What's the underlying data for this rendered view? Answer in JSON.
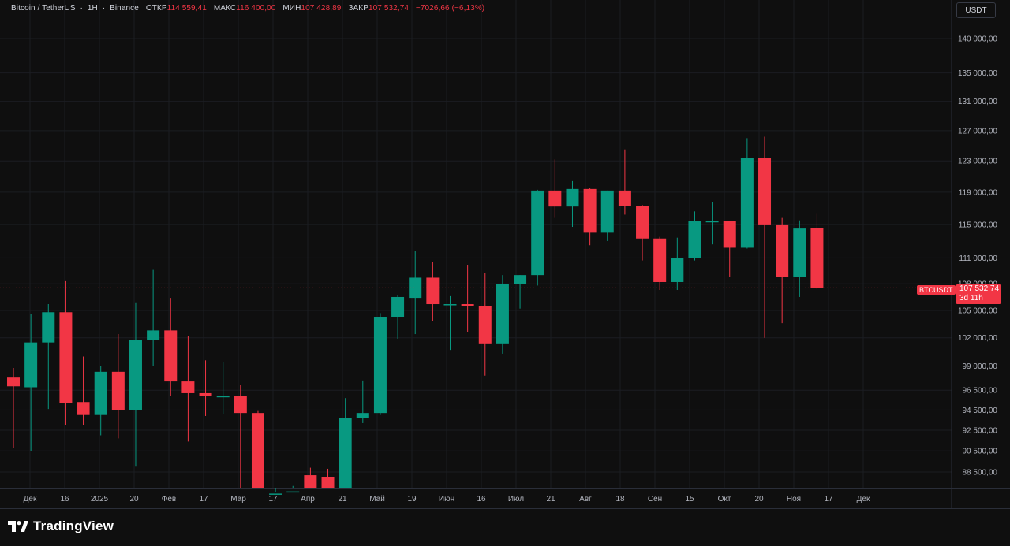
{
  "header": {
    "symbol": "Bitcoin / TetherUS",
    "interval": "1H",
    "exchange": "Binance",
    "open_label": "ОТКР",
    "open_value": "114 559,41",
    "high_label": "МАКС",
    "high_value": "116 400,00",
    "low_label": "МИН",
    "low_value": "107 428,89",
    "close_label": "ЗАКР",
    "close_value": "107 532,74",
    "change_value": "−7026,66 (−6,13%)"
  },
  "currency_button": "USDT",
  "price_tag": {
    "symbol": "BTCUSDT",
    "price": "107 532,74",
    "countdown": "3d 11h"
  },
  "footer": {
    "brand": "TradingView"
  },
  "colors": {
    "up": "#089981",
    "down": "#f23645",
    "background": "#0f0f0f",
    "grid": "#1b1d22",
    "text": "#d1d4dc"
  },
  "chart_data": {
    "type": "candlestick",
    "y_scale": "log",
    "y_tick_labels": [
      "140 000,00",
      "135 000,00",
      "131 000,00",
      "127 000,00",
      "123 000,00",
      "119 000,00",
      "115 000,00",
      "111 000,00",
      "108 000,00",
      "105 000,00",
      "102 000,00",
      "99 000,00",
      "96 500,00",
      "94 500,00",
      "92 500,00",
      "90 500,00",
      "88 500,00"
    ],
    "y_ticks": [
      140000,
      135000,
      131000,
      127000,
      123000,
      119000,
      115000,
      111000,
      108000,
      105000,
      102000,
      99000,
      96500,
      94500,
      92500,
      90500,
      88500
    ],
    "x_tick_labels": [
      "Дек",
      "16",
      "2025",
      "20",
      "Фев",
      "17",
      "Мар",
      "17",
      "Апр",
      "21",
      "Май",
      "19",
      "Июн",
      "16",
      "Июл",
      "21",
      "Авг",
      "18",
      "Сен",
      "15",
      "Окт",
      "20",
      "Ноя",
      "17",
      "Дек"
    ],
    "last_price": 107532.74,
    "candles": [
      {
        "o": 97800,
        "h": 98800,
        "l": 90800,
        "c": 96900
      },
      {
        "o": 96800,
        "h": 104600,
        "l": 90500,
        "c": 101500
      },
      {
        "o": 101500,
        "h": 105700,
        "l": 94600,
        "c": 104800
      },
      {
        "o": 104800,
        "h": 108300,
        "l": 93000,
        "c": 95200
      },
      {
        "o": 95300,
        "h": 100000,
        "l": 93000,
        "c": 94000
      },
      {
        "o": 94000,
        "h": 99000,
        "l": 92000,
        "c": 98400
      },
      {
        "o": 98400,
        "h": 102400,
        "l": 91700,
        "c": 94500
      },
      {
        "o": 94500,
        "h": 105900,
        "l": 89000,
        "c": 101800
      },
      {
        "o": 101800,
        "h": 109600,
        "l": 99000,
        "c": 102800
      },
      {
        "o": 102800,
        "h": 106400,
        "l": 95900,
        "c": 97400
      },
      {
        "o": 97400,
        "h": 102200,
        "l": 91400,
        "c": 96200
      },
      {
        "o": 96200,
        "h": 99600,
        "l": 93900,
        "c": 95900
      },
      {
        "o": 95800,
        "h": 99400,
        "l": 94100,
        "c": 95900
      },
      {
        "o": 95900,
        "h": 97000,
        "l": 86000,
        "c": 94200
      },
      {
        "o": 94200,
        "h": 94400,
        "l": 86000,
        "c": 86500
      },
      {
        "o": 86500,
        "h": 86600,
        "l": 86300,
        "c": 86500
      },
      {
        "o": 86500,
        "h": 87200,
        "l": 86000,
        "c": 86700
      },
      {
        "o": 88200,
        "h": 88900,
        "l": 86000,
        "c": 87000
      },
      {
        "o": 88000,
        "h": 88800,
        "l": 86000,
        "c": 86900
      },
      {
        "o": 86600,
        "h": 95700,
        "l": 86000,
        "c": 93700
      },
      {
        "o": 93700,
        "h": 97500,
        "l": 93200,
        "c": 94200
      },
      {
        "o": 94200,
        "h": 104700,
        "l": 94000,
        "c": 104300
      },
      {
        "o": 104300,
        "h": 106700,
        "l": 101900,
        "c": 106500
      },
      {
        "o": 106400,
        "h": 111800,
        "l": 102400,
        "c": 108700
      },
      {
        "o": 108700,
        "h": 110500,
        "l": 103800,
        "c": 105700
      },
      {
        "o": 105700,
        "h": 106600,
        "l": 100700,
        "c": 105700
      },
      {
        "o": 105700,
        "h": 110200,
        "l": 102600,
        "c": 105500
      },
      {
        "o": 105500,
        "h": 109200,
        "l": 98000,
        "c": 101400
      },
      {
        "o": 101400,
        "h": 109000,
        "l": 100300,
        "c": 108000
      },
      {
        "o": 108000,
        "h": 109000,
        "l": 105200,
        "c": 109000
      },
      {
        "o": 109000,
        "h": 119300,
        "l": 107800,
        "c": 119200
      },
      {
        "o": 119200,
        "h": 123200,
        "l": 115800,
        "c": 117200
      },
      {
        "o": 117200,
        "h": 120400,
        "l": 114700,
        "c": 119400
      },
      {
        "o": 119400,
        "h": 119500,
        "l": 112500,
        "c": 114000
      },
      {
        "o": 114000,
        "h": 119200,
        "l": 113000,
        "c": 119200
      },
      {
        "o": 119200,
        "h": 124500,
        "l": 116200,
        "c": 117300
      },
      {
        "o": 117300,
        "h": 117400,
        "l": 110700,
        "c": 113300
      },
      {
        "o": 113300,
        "h": 113500,
        "l": 107300,
        "c": 108200
      },
      {
        "o": 108200,
        "h": 113400,
        "l": 107300,
        "c": 111000
      },
      {
        "o": 111000,
        "h": 116600,
        "l": 110700,
        "c": 115400
      },
      {
        "o": 115400,
        "h": 117800,
        "l": 112600,
        "c": 115400
      },
      {
        "o": 115400,
        "h": 115400,
        "l": 108800,
        "c": 112200
      },
      {
        "o": 112200,
        "h": 126000,
        "l": 112100,
        "c": 123400
      },
      {
        "o": 123400,
        "h": 126200,
        "l": 102000,
        "c": 115000
      },
      {
        "o": 115000,
        "h": 115800,
        "l": 103600,
        "c": 108800
      },
      {
        "o": 108800,
        "h": 115500,
        "l": 106500,
        "c": 114500
      },
      {
        "o": 114600,
        "h": 116400,
        "l": 107400,
        "c": 107500
      }
    ]
  }
}
